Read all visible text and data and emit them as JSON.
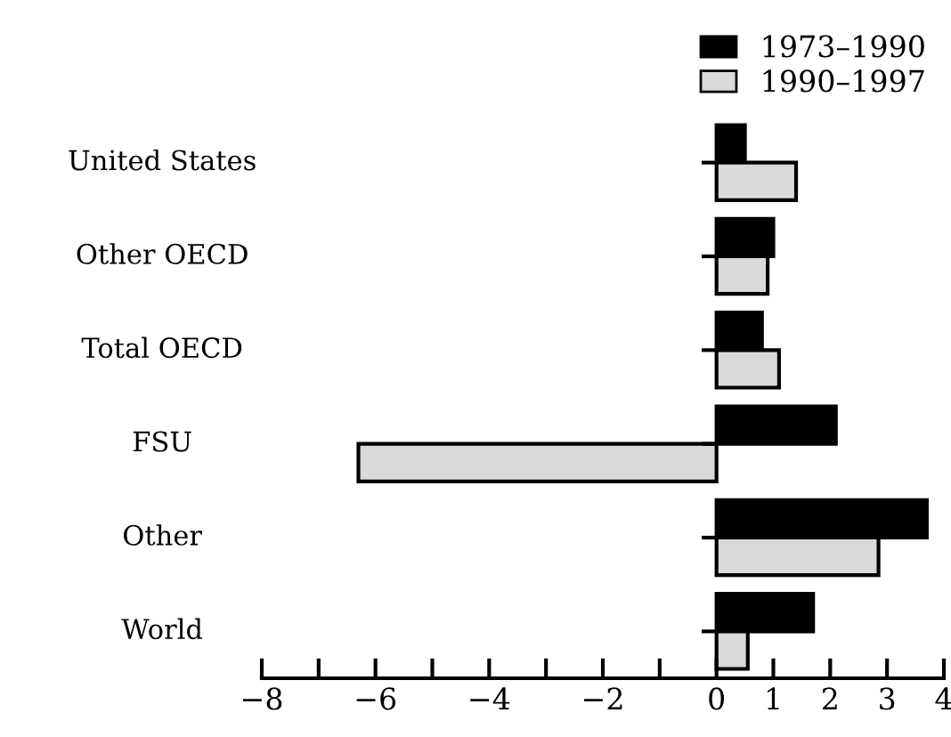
{
  "chart_data": {
    "type": "bar",
    "orientation": "horizontal",
    "categories": [
      "United States",
      "Other OECD",
      "Total OECD",
      "FSU",
      "Other",
      "World"
    ],
    "series": [
      {
        "name": "1973–1990",
        "color": "#000000",
        "values": [
          0.5,
          1.0,
          0.8,
          2.1,
          3.7,
          1.7
        ]
      },
      {
        "name": "1990–1997",
        "color": "#d9d9d9",
        "values": [
          1.4,
          0.9,
          1.1,
          -6.3,
          2.85,
          0.55
        ]
      }
    ],
    "xlim": [
      -8,
      4
    ],
    "xticks": [
      -8,
      {
        "value": -7,
        "label": null
      },
      -6,
      {
        "value": -5,
        "label": null
      },
      -4,
      {
        "value": -3,
        "label": null
      },
      -2,
      {
        "value": -1,
        "label": null
      },
      0,
      1,
      2,
      3,
      4
    ],
    "grid": false,
    "legend": "top right"
  }
}
